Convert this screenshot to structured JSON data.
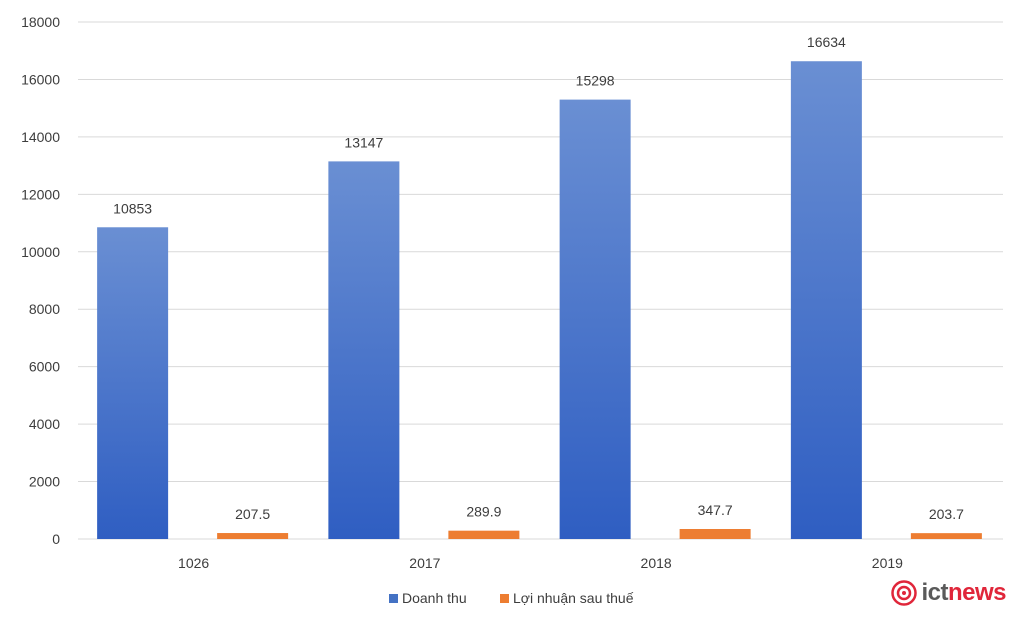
{
  "chart_data": {
    "type": "bar",
    "categories": [
      "1026",
      "2017",
      "2018",
      "2019"
    ],
    "series": [
      {
        "name": "Doanh thu",
        "values": [
          10853,
          13147,
          15298,
          16634
        ],
        "labels": [
          "10853",
          "13147",
          "15298",
          "16634"
        ]
      },
      {
        "name": "Lợi nhuận sau thuế",
        "values": [
          207.5,
          289.9,
          347.7,
          203.7
        ],
        "labels": [
          "207.5",
          "289.9",
          "347.7",
          "203.7"
        ]
      }
    ],
    "ylim": [
      0,
      18000
    ],
    "yticks": [
      0,
      2000,
      4000,
      6000,
      8000,
      10000,
      12000,
      14000,
      16000,
      18000
    ],
    "grid": true,
    "legend_position": "bottom",
    "colors": {
      "Doanh thu": "#4472c4",
      "Lợi nhuận sau thuế": "#ed7d31"
    }
  },
  "watermark": {
    "text_ict": "ict",
    "text_news": "news",
    "color_accent": "#e0263a"
  }
}
